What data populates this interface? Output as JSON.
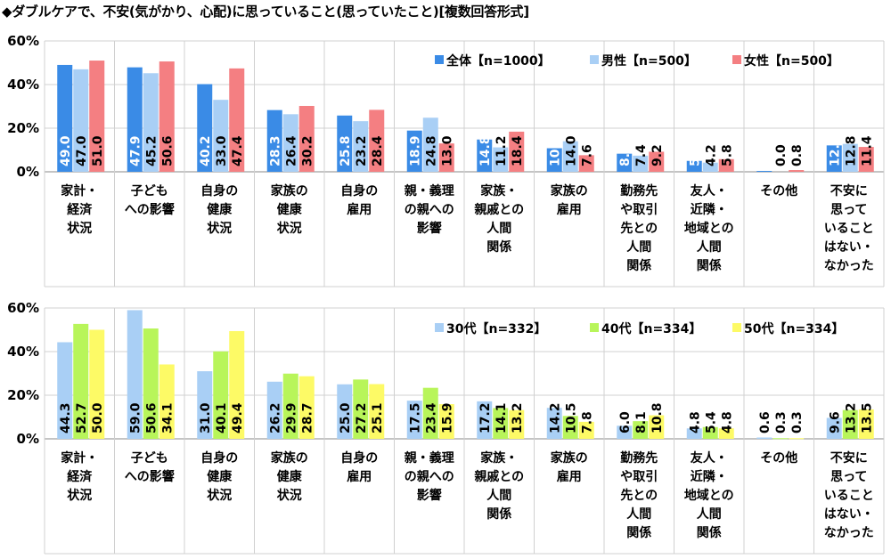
{
  "title": "◆ダブルケアで、不安(気がかり、心配)に思っていること(思っていたこと)[複数回答形式]",
  "chart_data": [
    {
      "type": "bar",
      "categories": [
        [
          "家計・",
          "経済",
          "状況"
        ],
        [
          "子ども",
          "への影響"
        ],
        [
          "自身の",
          "健康",
          "状況"
        ],
        [
          "家族の",
          "健康",
          "状況"
        ],
        [
          "自身の",
          "雇用"
        ],
        [
          "親・義理",
          "の親への",
          "影響"
        ],
        [
          "家族・",
          "親戚との",
          "人間",
          "関係"
        ],
        [
          "家族の",
          "雇用"
        ],
        [
          "勤務先",
          "や取引",
          "先との",
          "人間",
          "関係"
        ],
        [
          "友人・",
          "近隣・",
          "地域との",
          "人間",
          "関係"
        ],
        [
          "その他"
        ],
        [
          "不安に",
          "思って",
          "いること",
          "はない・",
          "なかった"
        ]
      ],
      "y_ticks": [
        "0%",
        "20%",
        "40%",
        "60%"
      ],
      "ylim": [
        0,
        60
      ],
      "legend_position": "top-right",
      "series": [
        {
          "name": "全体【n=1000】",
          "color": "#3a8be6",
          "values": [
            49.0,
            47.9,
            40.2,
            28.3,
            25.8,
            18.9,
            14.8,
            10.8,
            8.3,
            5.0,
            0.4,
            12.1
          ],
          "labels": [
            "49.0",
            "47.9",
            "40.2",
            "28.3",
            "25.8",
            "18.9",
            "14.8",
            "10.8",
            "8.3",
            "5.0",
            "0.4",
            "12.1"
          ]
        },
        {
          "name": "男性【n=500】",
          "color": "#a9cff5",
          "values": [
            47.0,
            45.2,
            33.0,
            26.4,
            23.2,
            24.8,
            11.2,
            14.0,
            7.4,
            4.2,
            0.0,
            12.8
          ],
          "labels": [
            "47.0",
            "45.2",
            "33.0",
            "26.4",
            "23.2",
            "24.8",
            "11.2",
            "14.0",
            "7.4",
            "4.2",
            "0.0",
            "12.8"
          ]
        },
        {
          "name": "女性【n=500】",
          "color": "#f47f82",
          "values": [
            51.0,
            50.6,
            47.4,
            30.2,
            28.4,
            13.0,
            18.4,
            7.6,
            9.2,
            5.8,
            0.8,
            11.4
          ],
          "labels": [
            "51.0",
            "50.6",
            "47.4",
            "30.2",
            "28.4",
            "13.0",
            "18.4",
            "7.6",
            "9.2",
            "5.8",
            "0.8",
            "11.4"
          ]
        }
      ]
    },
    {
      "type": "bar",
      "categories": [
        [
          "家計・",
          "経済",
          "状況"
        ],
        [
          "子ども",
          "への影響"
        ],
        [
          "自身の",
          "健康",
          "状況"
        ],
        [
          "家族の",
          "健康",
          "状況"
        ],
        [
          "自身の",
          "雇用"
        ],
        [
          "親・義理",
          "の親への",
          "影響"
        ],
        [
          "家族・",
          "親戚との",
          "人間",
          "関係"
        ],
        [
          "家族の",
          "雇用"
        ],
        [
          "勤務先",
          "や取引",
          "先との",
          "人間",
          "関係"
        ],
        [
          "友人・",
          "近隣・",
          "地域との",
          "人間",
          "関係"
        ],
        [
          "その他"
        ],
        [
          "不安に",
          "思って",
          "いること",
          "はない・",
          "なかった"
        ]
      ],
      "y_ticks": [
        "0%",
        "20%",
        "40%",
        "60%"
      ],
      "ylim": [
        0,
        60
      ],
      "legend_position": "top-right",
      "series": [
        {
          "name": "30代【n=332】",
          "color": "#a9cff5",
          "values": [
            44.3,
            59.0,
            31.0,
            26.2,
            25.0,
            17.5,
            17.2,
            14.2,
            6.0,
            4.8,
            0.6,
            9.6
          ],
          "labels": [
            "44.3",
            "59.0",
            "31.0",
            "26.2",
            "25.0",
            "17.5",
            "17.2",
            "14.2",
            "6.0",
            "4.8",
            "0.6",
            "9.6"
          ]
        },
        {
          "name": "40代【n=334】",
          "color": "#b8f55a",
          "values": [
            52.7,
            50.6,
            40.1,
            29.9,
            27.2,
            23.4,
            14.1,
            10.5,
            8.1,
            5.4,
            0.3,
            13.2
          ],
          "labels": [
            "52.7",
            "50.6",
            "40.1",
            "29.9",
            "27.2",
            "23.4",
            "14.1",
            "10.5",
            "8.1",
            "5.4",
            "0.3",
            "13.2"
          ]
        },
        {
          "name": "50代【n=334】",
          "color": "#fdfa66",
          "values": [
            50.0,
            34.1,
            49.4,
            28.7,
            25.1,
            15.9,
            13.2,
            7.8,
            10.8,
            4.8,
            0.3,
            13.5
          ],
          "labels": [
            "50.0",
            "34.1",
            "49.4",
            "28.7",
            "25.1",
            "15.9",
            "13.2",
            "7.8",
            "10.8",
            "4.8",
            "0.3",
            "13.5"
          ]
        }
      ]
    }
  ]
}
